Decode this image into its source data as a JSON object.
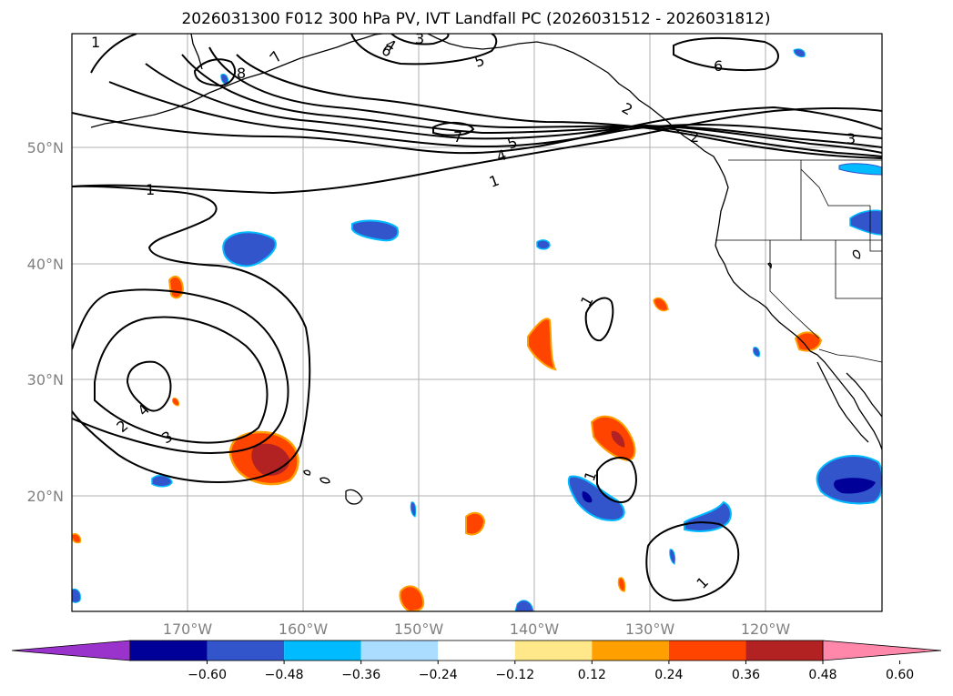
{
  "title": "2026031300 F012 300 hPa PV, IVT Landfall PC (2026031512 - 2026031812)",
  "lat_labels": [
    "50°N",
    "40°N",
    "30°N",
    "20°N"
  ],
  "lon_labels": [
    "170°W",
    "160°W",
    "150°W",
    "140°W",
    "130°W",
    "120°W"
  ],
  "colorbar": {
    "ticks": [
      "−0.60",
      "−0.48",
      "−0.36",
      "−0.24",
      "−0.12",
      "0.12",
      "0.24",
      "0.36",
      "0.48",
      "0.60"
    ],
    "colors": [
      "#9933cc",
      "#000099",
      "#3355cc",
      "#00bbff",
      "#aaddff",
      "#ffffff",
      "#ffe88a",
      "#ffa000",
      "#ff4400",
      "#b22222",
      "#ff88aa"
    ]
  },
  "contour_labels": [
    "8",
    "7",
    "6",
    "5",
    "4",
    "3",
    "2",
    "1",
    "6",
    "7",
    "5",
    "4",
    "1",
    "2",
    "3",
    "1",
    "4",
    "3",
    "2",
    "1",
    "1",
    "1"
  ],
  "colors": {
    "neg_strong": "#000099",
    "neg_mid": "#3355cc",
    "neg_weak": "#00bbff",
    "pos_weak": "#ffa000",
    "pos_mid": "#ff4400",
    "pos_strong": "#b22222"
  }
}
